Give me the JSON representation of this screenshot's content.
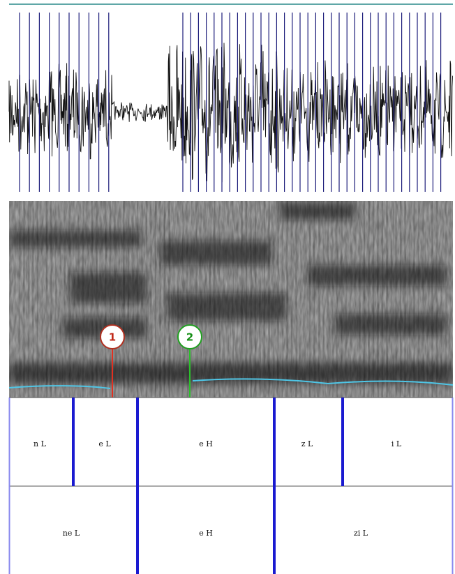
{
  "markers": [
    {
      "label": "1"
    },
    {
      "label": "2"
    }
  ],
  "tiers": [
    {
      "intervals": [
        "n L",
        "e L",
        "e H",
        "z L",
        "i L"
      ]
    },
    {
      "intervals": [
        "ne L",
        "e H",
        "zi L"
      ]
    }
  ]
}
